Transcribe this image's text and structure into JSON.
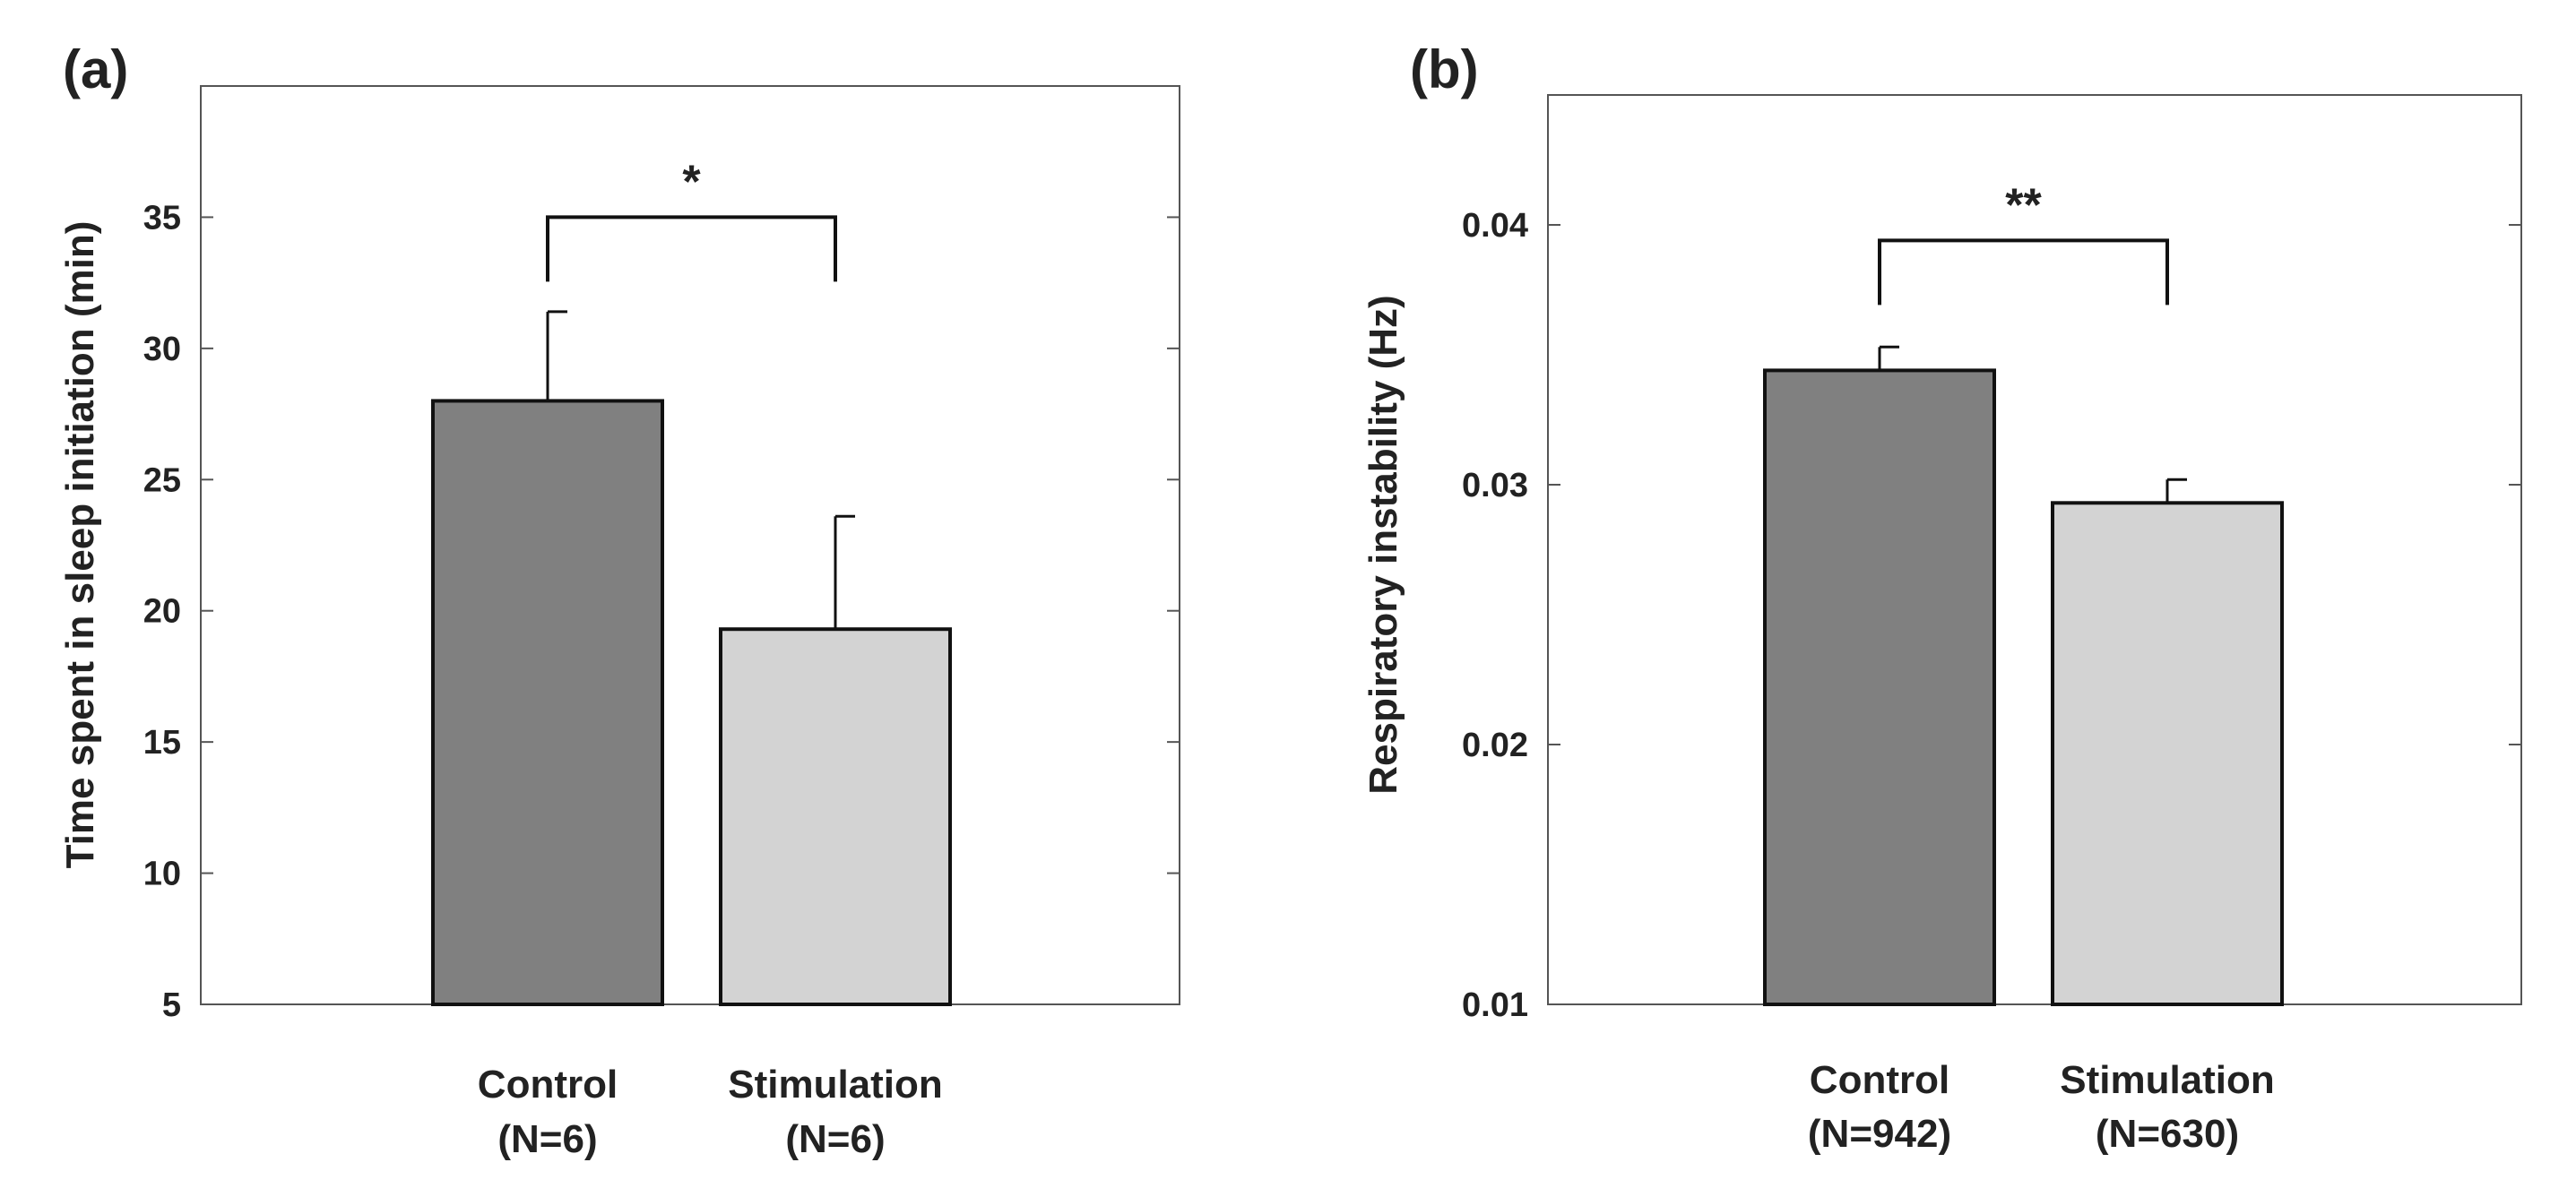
{
  "chart_data": [
    {
      "type": "bar",
      "panel_label": "(a)",
      "title": "",
      "xlabel": "",
      "ylabel": "Time spent in sleep initiation (min)",
      "ylim": [
        5,
        40
      ],
      "yticks": [
        5,
        10,
        15,
        20,
        25,
        30,
        35
      ],
      "grid": false,
      "categories": [
        "Control (N=6)",
        "Stimulation (N=6)"
      ],
      "category_lines": [
        [
          "Control",
          "(N=6)"
        ],
        [
          "Stimulation",
          "(N=6)"
        ]
      ],
      "values": [
        28.0,
        19.3
      ],
      "errors": [
        3.4,
        4.3
      ],
      "bar_colors": [
        "#808080",
        "#d3d3d3"
      ],
      "significance": {
        "between": [
          0,
          1
        ],
        "label": "*",
        "y": 35
      }
    },
    {
      "type": "bar",
      "panel_label": "(b)",
      "title": "",
      "xlabel": "",
      "ylabel": "Respiratory instability (Hz)",
      "ylim": [
        0.01,
        0.045
      ],
      "yticks": [
        0.01,
        0.02,
        0.03,
        0.04
      ],
      "ytick_labels": [
        "0.01",
        "0.02",
        "0.03",
        "0.04"
      ],
      "grid": false,
      "categories": [
        "Control (N=942)",
        "Stimulation (N=630)"
      ],
      "category_lines": [
        [
          "Control",
          "(N=942)"
        ],
        [
          "Stimulation",
          "(N=630)"
        ]
      ],
      "values": [
        0.0344,
        0.0293
      ],
      "errors": [
        0.0009,
        0.0009
      ],
      "bar_colors": [
        "#808080",
        "#d3d3d3"
      ],
      "significance": {
        "between": [
          0,
          1
        ],
        "label": "**",
        "y": 0.0394
      }
    }
  ]
}
